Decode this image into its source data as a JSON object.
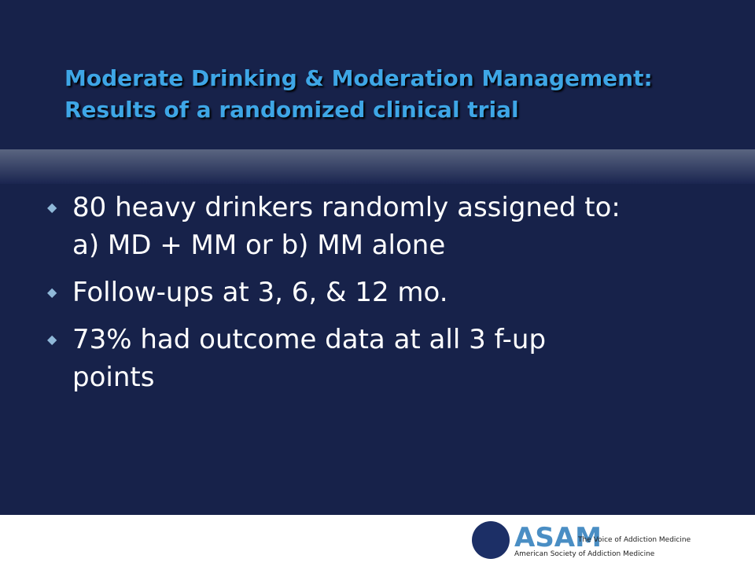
{
  "header": {
    "title_lines": [
      "Moderate Drinking & Moderation Management:",
      "Results of a randomized clinical trial"
    ]
  },
  "bullets": [
    [
      "80 heavy drinkers randomly assigned to:",
      "a) MD + MM or b) MM alone"
    ],
    [
      "Follow-ups at 3, 6, & 12 mo."
    ],
    [
      "73% had outcome data at all 3 f-up",
      "points"
    ]
  ],
  "footer": {
    "logo_text": "ASAM",
    "tagline": "The Voice of Addiction Medicine",
    "org_name": "American Society of Addiction Medicine"
  }
}
